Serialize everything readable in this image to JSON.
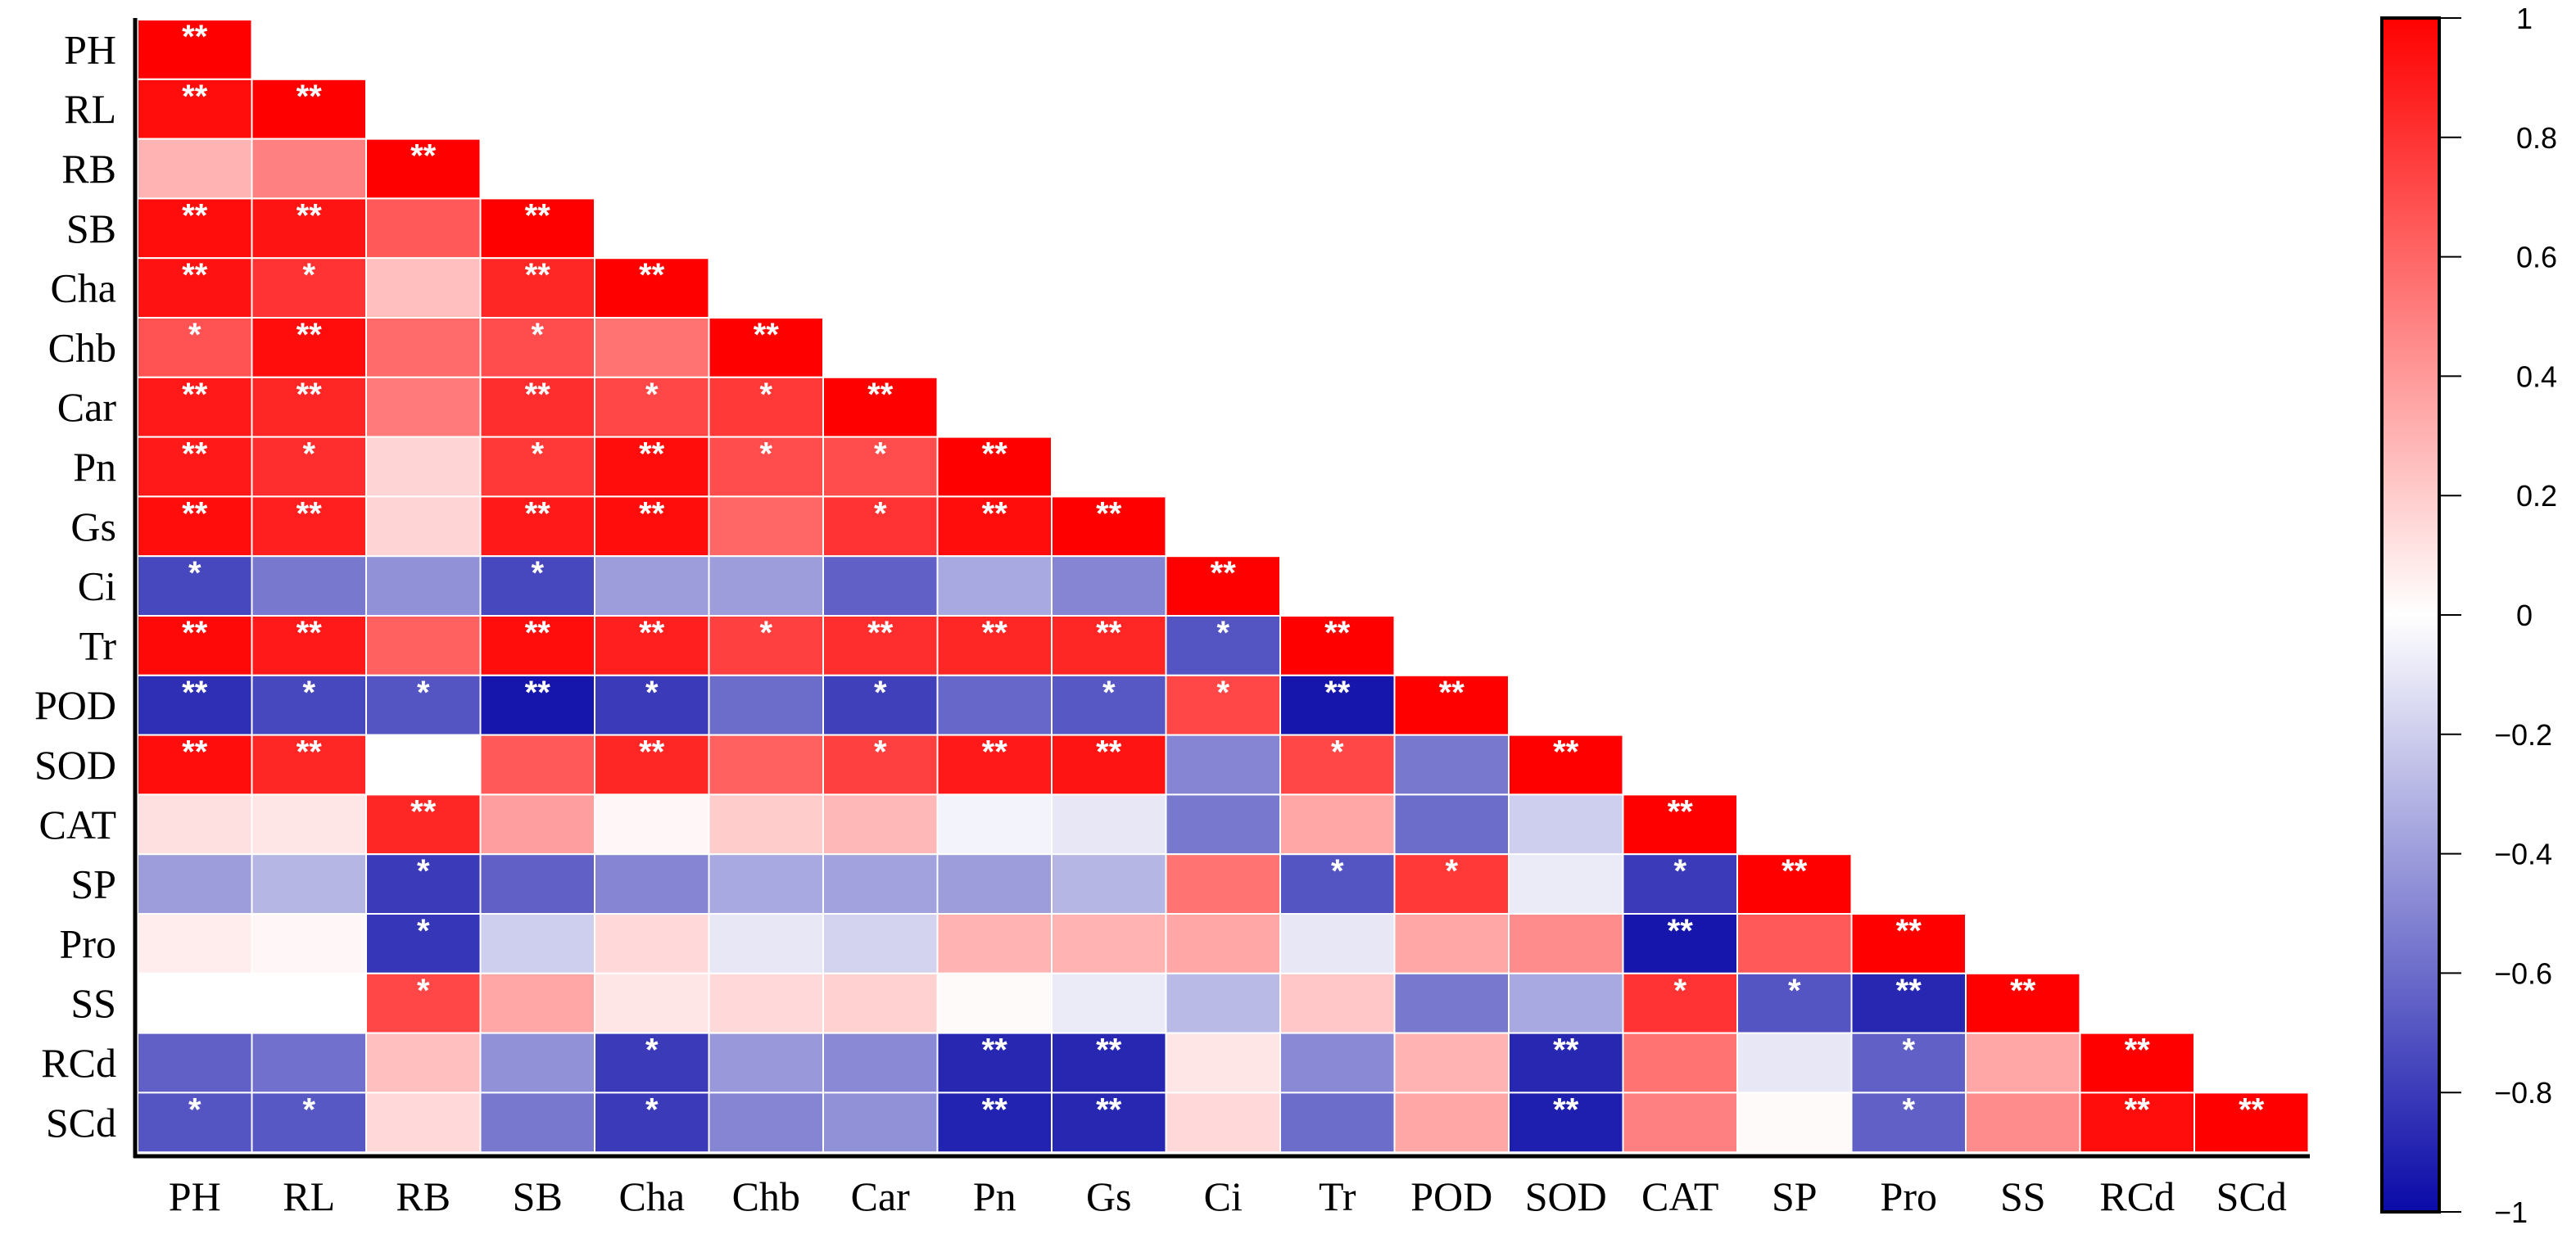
{
  "chart_data": {
    "type": "heatmap",
    "title": "",
    "variables": [
      "PH",
      "RL",
      "RB",
      "SB",
      "Cha",
      "Chb",
      "Car",
      "Pn",
      "Gs",
      "Ci",
      "Tr",
      "POD",
      "SOD",
      "CAT",
      "SP",
      "Pro",
      "SS",
      "RCd",
      "SCd"
    ],
    "matrix_shape": "lower-triangle",
    "values": [
      [
        1
      ],
      [
        0.95,
        1
      ],
      [
        0.3,
        0.5,
        1
      ],
      [
        0.95,
        0.92,
        0.65,
        1
      ],
      [
        0.93,
        0.8,
        0.25,
        0.85,
        1
      ],
      [
        0.68,
        0.95,
        0.58,
        0.7,
        0.55,
        1
      ],
      [
        0.9,
        0.85,
        0.52,
        0.82,
        0.72,
        0.78,
        1
      ],
      [
        0.9,
        0.82,
        0.17,
        0.78,
        0.95,
        0.7,
        0.7,
        1
      ],
      [
        0.95,
        0.88,
        0.17,
        0.9,
        0.95,
        0.6,
        0.8,
        0.95,
        1
      ],
      [
        -0.75,
        -0.55,
        -0.45,
        -0.75,
        -0.4,
        -0.4,
        -0.65,
        -0.35,
        -0.5,
        1
      ],
      [
        0.97,
        0.9,
        0.62,
        0.95,
        0.88,
        0.75,
        0.82,
        0.85,
        0.85,
        -0.7,
        1
      ],
      [
        -0.85,
        -0.75,
        -0.7,
        -0.95,
        -0.8,
        -0.6,
        -0.78,
        -0.62,
        -0.68,
        0.72,
        -0.95,
        1
      ],
      [
        0.95,
        0.85,
        0.0,
        0.65,
        0.85,
        0.62,
        0.75,
        0.9,
        0.92,
        -0.5,
        0.72,
        -0.55,
        1
      ],
      [
        0.12,
        0.1,
        0.85,
        0.38,
        0.03,
        0.2,
        0.28,
        -0.05,
        -0.1,
        -0.55,
        0.35,
        -0.6,
        -0.2,
        1
      ],
      [
        -0.4,
        -0.3,
        -0.8,
        -0.65,
        -0.5,
        -0.35,
        -0.38,
        -0.4,
        -0.3,
        0.55,
        -0.7,
        0.78,
        -0.08,
        -0.8,
        1
      ],
      [
        0.07,
        0.03,
        -0.82,
        -0.2,
        0.15,
        -0.1,
        -0.18,
        0.3,
        0.3,
        0.35,
        -0.1,
        0.35,
        0.45,
        -0.95,
        0.65,
        1
      ],
      [
        0.0,
        0.0,
        0.72,
        0.35,
        0.1,
        0.15,
        0.18,
        0.02,
        -0.08,
        -0.28,
        0.22,
        -0.55,
        -0.35,
        0.8,
        -0.7,
        -0.88,
        1
      ],
      [
        -0.65,
        -0.58,
        0.25,
        -0.45,
        -0.8,
        -0.42,
        -0.48,
        -0.88,
        -0.88,
        0.1,
        -0.48,
        0.3,
        -0.88,
        0.55,
        -0.1,
        -0.65,
        0.35,
        1
      ],
      [
        -0.7,
        -0.68,
        0.15,
        -0.55,
        -0.8,
        -0.5,
        -0.45,
        -0.9,
        -0.88,
        0.15,
        -0.6,
        0.35,
        -0.92,
        0.5,
        0.02,
        -0.65,
        0.45,
        0.95,
        1
      ]
    ],
    "significance": [
      [
        "**"
      ],
      [
        "**",
        "**"
      ],
      [
        "",
        "",
        "**"
      ],
      [
        "**",
        "**",
        "",
        "**"
      ],
      [
        "**",
        "*",
        "",
        "**",
        "**"
      ],
      [
        "*",
        "**",
        "",
        "*",
        "",
        "**"
      ],
      [
        "**",
        "**",
        "",
        "**",
        "*",
        "*",
        "**"
      ],
      [
        "**",
        "*",
        "",
        "*",
        "**",
        "*",
        "*",
        "**"
      ],
      [
        "**",
        "**",
        "",
        "**",
        "**",
        "",
        "*",
        "**",
        "**"
      ],
      [
        "*",
        "",
        "",
        "*",
        "",
        "",
        "",
        "",
        "",
        "**"
      ],
      [
        "**",
        "**",
        "",
        "**",
        "**",
        "*",
        "**",
        "**",
        "**",
        "*",
        "**"
      ],
      [
        "**",
        "*",
        "*",
        "**",
        "*",
        "",
        "*",
        "",
        "*",
        "*",
        "**",
        "**"
      ],
      [
        "**",
        "**",
        "",
        "",
        "**",
        "",
        "*",
        "**",
        "**",
        "",
        "*",
        "",
        "**"
      ],
      [
        "",
        "",
        "**",
        "",
        "",
        "",
        "",
        "",
        "",
        "",
        "",
        "",
        "",
        "**"
      ],
      [
        "",
        "",
        "*",
        "",
        "",
        "",
        "",
        "",
        "",
        "",
        "*",
        "*",
        "",
        "*",
        "**"
      ],
      [
        "",
        "",
        "*",
        "",
        "",
        "",
        "",
        "",
        "",
        "",
        "",
        "",
        "",
        "**",
        "",
        "**"
      ],
      [
        "",
        "",
        "*",
        "",
        "",
        "",
        "",
        "",
        "",
        "",
        "",
        "",
        "",
        "*",
        "*",
        "**",
        "**"
      ],
      [
        "",
        "",
        "",
        "",
        "*",
        "",
        "",
        "**",
        "**",
        "",
        "",
        "",
        "**",
        "",
        "",
        "*",
        "",
        "**"
      ],
      [
        "*",
        "*",
        "",
        "",
        "*",
        "",
        "",
        "**",
        "**",
        "",
        "",
        "",
        "**",
        "",
        "",
        "*",
        "",
        "**",
        "**"
      ]
    ],
    "colorbar": {
      "range": [
        -1,
        1
      ],
      "ticks": [
        "1",
        "0.8",
        "0.6",
        "0.4",
        "0.2",
        "0",
        "−0.2",
        "−0.4",
        "−0.6",
        "−0.8",
        "−1"
      ],
      "tick_values": [
        1,
        0.8,
        0.6,
        0.4,
        0.2,
        0,
        -0.2,
        -0.4,
        -0.6,
        -0.8,
        -1
      ],
      "colors": {
        "positive": "#ff0000",
        "zero": "#ffffff",
        "negative": "#0a0aa8"
      },
      "placement": "right"
    },
    "xlabel": "",
    "ylabel": ""
  }
}
